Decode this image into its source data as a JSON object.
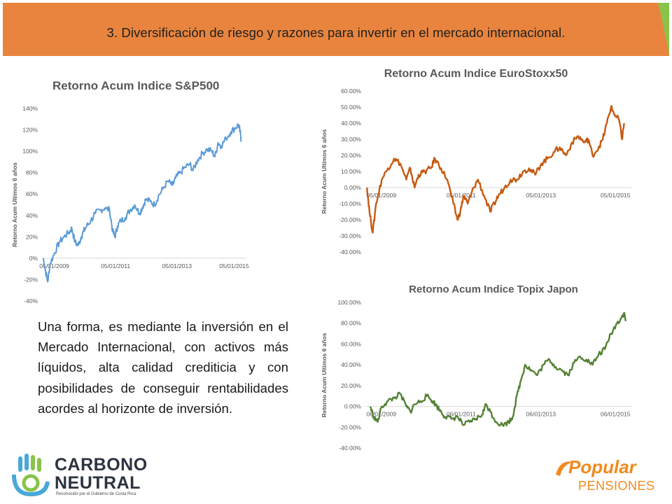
{
  "header": {
    "title": "3. Diversificación de riesgo y razones para invertir en el mercado internacional.",
    "color": "#e8843e"
  },
  "body_text": "Una forma, es mediante la inversión en el Mercado Internacional, con activos más líquidos, alta calidad crediticia y con posibilidades de conseguir rentabilidades acordes al horizonte de inversión.",
  "logos": {
    "carbono": {
      "line1": "CARBONO",
      "line2": "NEUTRAL",
      "caption": "Reconocido por el Gobierno de Costa Rica",
      "icon": "hand-c-icon"
    },
    "popular": {
      "word1": "Popular",
      "word2": "PENSIONES",
      "icon": "popular-swoosh-icon"
    }
  },
  "chart_data": [
    {
      "type": "line",
      "title": "Retorno Acum Indice S&P500",
      "ylabel": "Retorno Acum Ultimos 6 años",
      "xlabel": "",
      "ylim": [
        -40,
        140
      ],
      "yticks": [
        "140%",
        "120%",
        "100%",
        "80%",
        "60%",
        "40%",
        "20%",
        "0%",
        "-20%",
        "-40%"
      ],
      "xticks": [
        "05/01/2009",
        "05/01/2011",
        "05/01/2013",
        "05/01/2015"
      ],
      "xlim": [
        2009.3,
        2015.8
      ],
      "color": "#5b9bd5",
      "grid": false,
      "series": [
        {
          "x": [
            2009.34,
            2009.4,
            2009.48,
            2009.56,
            2009.7,
            2009.85,
            2010.0,
            2010.15,
            2010.25,
            2010.35,
            2010.45,
            2010.55,
            2010.62,
            2010.72,
            2010.85,
            2011.0,
            2011.15,
            2011.3,
            2011.45,
            2011.55,
            2011.62,
            2011.7,
            2011.8,
            2011.95,
            2012.1,
            2012.25,
            2012.4,
            2012.5,
            2012.6,
            2012.75,
            2012.88,
            2013.0,
            2013.15,
            2013.3,
            2013.45,
            2013.55,
            2013.7,
            2013.85,
            2014.0,
            2014.1,
            2014.25,
            2014.4,
            2014.55,
            2014.7,
            2014.8,
            2014.9,
            2015.0,
            2015.15,
            2015.3,
            2015.45,
            2015.55,
            2015.6,
            2015.64
          ],
          "y": [
            0,
            -10,
            -22,
            -5,
            5,
            15,
            20,
            24,
            28,
            15,
            12,
            20,
            25,
            30,
            35,
            42,
            45,
            47,
            45,
            25,
            20,
            30,
            35,
            38,
            45,
            50,
            42,
            48,
            55,
            53,
            50,
            58,
            65,
            72,
            68,
            75,
            80,
            85,
            88,
            82,
            92,
            98,
            102,
            100,
            95,
            108,
            105,
            112,
            118,
            122,
            125,
            118,
            110
          ]
        }
      ]
    },
    {
      "type": "line",
      "title": "Retorno Acum Indice EuroStoxx50",
      "ylabel": "Retorno Acum Ultimos 6 años",
      "xlabel": "",
      "ylim": [
        -40,
        60
      ],
      "yticks": [
        "60.00%",
        "50.00%",
        "40.00%",
        "30.00%",
        "20.00%",
        "10.00%",
        "0.00%",
        "-10.00%",
        "-20.00%",
        "-30.00%",
        "-40.00%"
      ],
      "xticks": [
        "05/01/2009",
        "05/01/2011",
        "05/01/2013",
        "05/01/2015"
      ],
      "xlim": [
        2009.3,
        2015.8
      ],
      "color": "#c55a11",
      "grid": false,
      "series": [
        {
          "x": [
            2009.34,
            2009.4,
            2009.48,
            2009.56,
            2009.7,
            2009.85,
            2010.0,
            2010.15,
            2010.3,
            2010.4,
            2010.5,
            2010.6,
            2010.75,
            2010.9,
            2011.0,
            2011.15,
            2011.3,
            2011.45,
            2011.55,
            2011.62,
            2011.7,
            2011.8,
            2011.95,
            2012.05,
            2012.2,
            2012.35,
            2012.45,
            2012.55,
            2012.7,
            2012.85,
            2013.0,
            2013.15,
            2013.3,
            2013.45,
            2013.6,
            2013.75,
            2013.9,
            2014.05,
            2014.2,
            2014.35,
            2014.5,
            2014.65,
            2014.75,
            2014.85,
            2015.0,
            2015.1,
            2015.2,
            2015.3,
            2015.4,
            2015.5,
            2015.57,
            2015.62
          ],
          "y": [
            0,
            -15,
            -28,
            -10,
            5,
            12,
            18,
            15,
            5,
            12,
            0,
            8,
            10,
            12,
            18,
            12,
            5,
            -10,
            -20,
            -15,
            -5,
            -10,
            0,
            5,
            -5,
            -15,
            -10,
            -5,
            0,
            5,
            5,
            10,
            12,
            8,
            15,
            18,
            22,
            25,
            20,
            28,
            32,
            28,
            30,
            20,
            25,
            30,
            40,
            50,
            45,
            42,
            30,
            40
          ]
        }
      ]
    },
    {
      "type": "line",
      "title": "Retorno Acum Indice Topix Japon",
      "ylabel": "Retorno Acum Ultimos 6 años",
      "xlabel": "",
      "ylim": [
        -40,
        100
      ],
      "yticks": [
        "100.00%",
        "80.00%",
        "60.00%",
        "40.00%",
        "20.00%",
        "0.00%",
        "-20.00%",
        "-40.00%"
      ],
      "xticks": [
        "06/01/2009",
        "06/01/2011",
        "06/01/2013",
        "06/01/2015"
      ],
      "xlim": [
        2009.3,
        2015.8
      ],
      "color": "#548235",
      "grid": false,
      "series": [
        {
          "x": [
            2009.42,
            2009.5,
            2009.6,
            2009.7,
            2009.85,
            2010.0,
            2010.15,
            2010.3,
            2010.4,
            2010.5,
            2010.65,
            2010.8,
            2010.95,
            2011.05,
            2011.15,
            2011.25,
            2011.4,
            2011.55,
            2011.7,
            2011.85,
            2012.0,
            2012.15,
            2012.25,
            2012.35,
            2012.5,
            2012.65,
            2012.8,
            2012.9,
            2013.0,
            2013.1,
            2013.2,
            2013.35,
            2013.5,
            2013.65,
            2013.8,
            2013.95,
            2014.1,
            2014.25,
            2014.4,
            2014.55,
            2014.7,
            2014.85,
            2015.0,
            2015.15,
            2015.3,
            2015.45,
            2015.55,
            2015.62,
            2015.66
          ],
          "y": [
            0,
            -10,
            -15,
            0,
            5,
            8,
            12,
            0,
            -5,
            2,
            5,
            10,
            5,
            0,
            -5,
            -10,
            -12,
            -10,
            -18,
            -15,
            -12,
            -8,
            2,
            -5,
            -15,
            -18,
            -15,
            -10,
            10,
            25,
            40,
            35,
            30,
            40,
            45,
            38,
            35,
            30,
            42,
            48,
            45,
            40,
            50,
            55,
            70,
            80,
            85,
            90,
            82
          ]
        }
      ]
    }
  ]
}
